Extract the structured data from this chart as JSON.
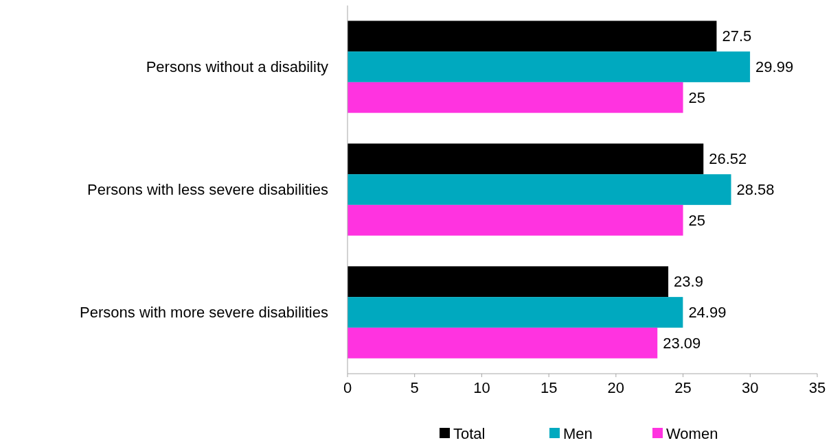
{
  "chart_data": {
    "type": "bar",
    "orientation": "horizontal",
    "categories": [
      "Persons without a disability",
      "Persons with less severe disabilities",
      "Persons with more severe disabilities"
    ],
    "series": [
      {
        "name": "Total",
        "color": "#000000",
        "values": [
          27.5,
          26.52,
          23.9
        ]
      },
      {
        "name": "Men",
        "color": "#00a9bf",
        "values": [
          29.99,
          28.58,
          24.99
        ]
      },
      {
        "name": "Women",
        "color": "#ff33e0",
        "values": [
          25,
          25,
          23.09
        ]
      }
    ],
    "xlim": [
      0,
      35
    ],
    "xticks": [
      0,
      5,
      10,
      15,
      20,
      25,
      30,
      35
    ],
    "data_labels": true,
    "legend": "bottom",
    "grid": false
  }
}
